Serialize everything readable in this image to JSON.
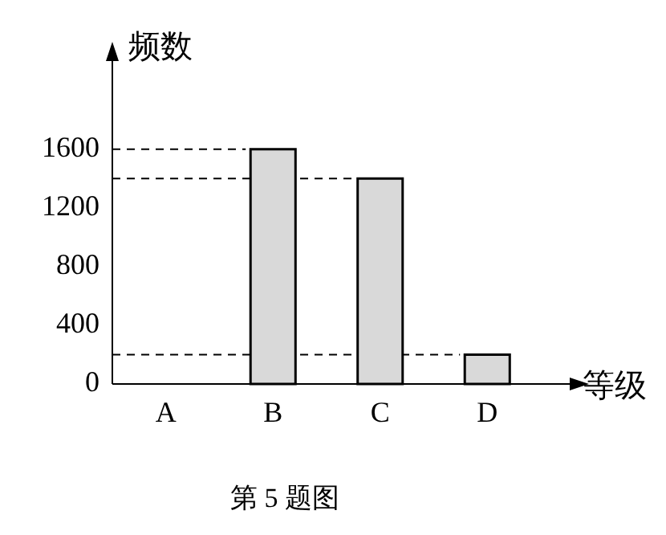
{
  "chart_data": {
    "type": "bar",
    "title": "第 5 题图",
    "xlabel": "等级",
    "ylabel": "频数",
    "categories": [
      "A",
      "B",
      "C",
      "D"
    ],
    "values": [
      0,
      1600,
      1400,
      200
    ],
    "color": "#d9d9d9",
    "ylim": [
      0,
      2200
    ],
    "yticks": [
      0,
      400,
      800,
      1200,
      1600
    ],
    "grid": false,
    "legend": false,
    "ref_lines": [
      {
        "axis": "y",
        "value": 1600,
        "line_style": "dashed"
      },
      {
        "axis": "y",
        "value": 1400,
        "line_style": "dashed"
      },
      {
        "axis": "y",
        "value": 200,
        "line_style": "dashed"
      }
    ]
  }
}
